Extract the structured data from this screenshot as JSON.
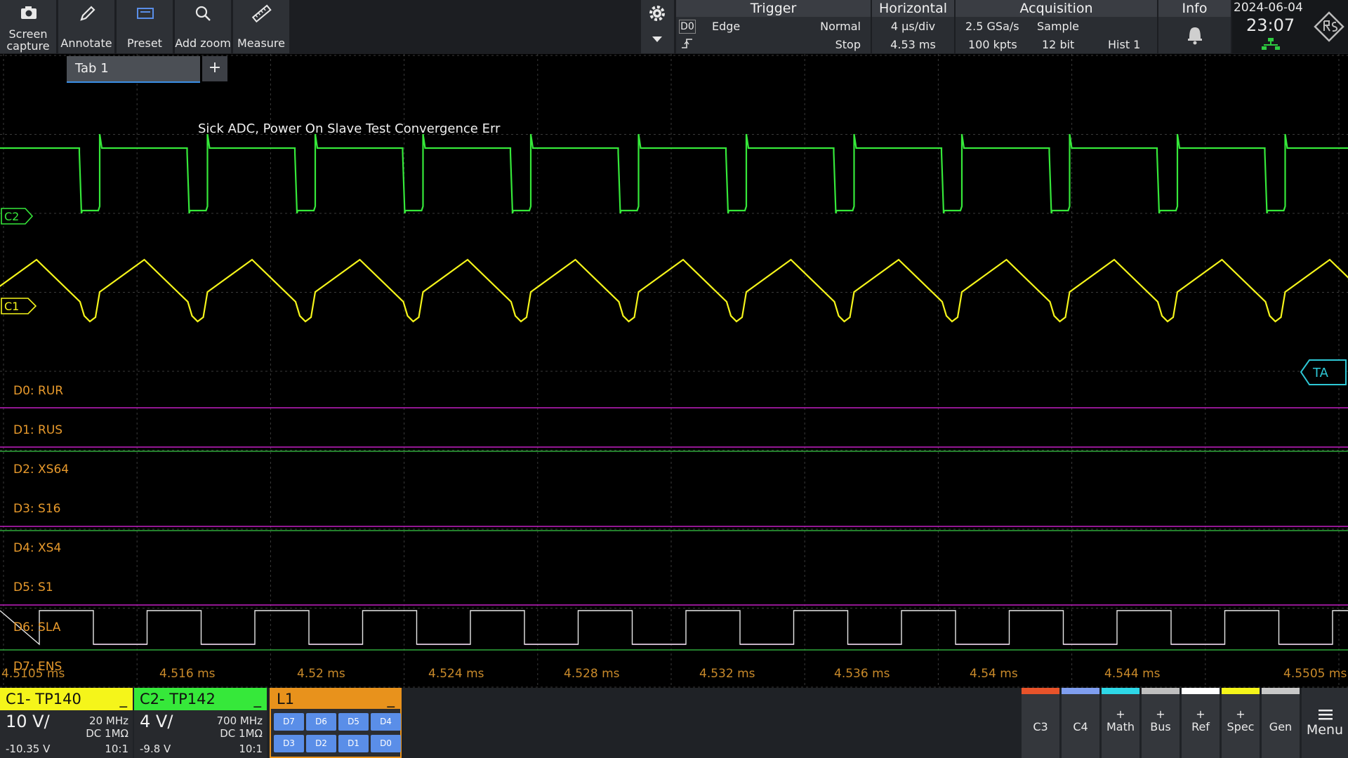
{
  "toolbar": {
    "screen_capture": "Screen\ncapture",
    "annotate": "Annotate",
    "preset": "Preset",
    "add_zoom": "Add zoom",
    "measure": "Measure"
  },
  "trigger": {
    "title": "Trigger",
    "source": "D0",
    "type": "Edge",
    "mode": "Normal",
    "state": "Stop"
  },
  "horizontal": {
    "title": "Horizontal",
    "scale": "4 µs/div",
    "position": "4.53 ms"
  },
  "acquisition": {
    "title": "Acquisition",
    "sample_rate": "2.5 GSa/s",
    "mode": "Sample",
    "record_length": "100 kpts",
    "resolution": "12 bit",
    "hist": "Hist 1"
  },
  "info": {
    "title": "Info"
  },
  "datetime": {
    "date": "2024-06-04",
    "time": "23:07"
  },
  "tabs": {
    "tab1": "Tab 1",
    "add": "+"
  },
  "annotation_text": "Sick ADC, Power On Slave Test Convergence Err",
  "channel_markers": {
    "c2": "C2",
    "c1": "C1",
    "trigger_arrow": "TA"
  },
  "digital_labels": [
    "D0: RUR",
    "D1: RUS",
    "D2: XS64",
    "D3: S16",
    "D4: XS4",
    "D5: S1",
    "D6: SLA",
    "D7: ENS"
  ],
  "time_axis": [
    "4.5105 ms",
    "4.516 ms",
    "4.52 ms",
    "4.524 ms",
    "4.528 ms",
    "4.532 ms",
    "4.536 ms",
    "4.54 ms",
    "4.544 ms",
    "4.5505 ms"
  ],
  "channels": {
    "c1": {
      "name": "C1- TP140",
      "scale": "10 V/",
      "bandwidth": "20 MHz",
      "coupling": "DC 1MΩ",
      "offset": "-10.35 V",
      "probe": "10:1",
      "color": "#f5f51a"
    },
    "c2": {
      "name": "C2- TP142",
      "scale": "4 V/",
      "bandwidth": "700 MHz",
      "coupling": "DC 1MΩ",
      "offset": "-9.8 V",
      "probe": "10:1",
      "color": "#36e83a"
    },
    "l1": {
      "name": "L1",
      "color": "#e8921c",
      "buttons": [
        "D7",
        "D6",
        "D5",
        "D4",
        "D3",
        "D2",
        "D1",
        "D0"
      ]
    }
  },
  "right_buttons": {
    "c3": "C3",
    "c4": "C4",
    "math_plus": "+",
    "math": "Math",
    "bus_plus": "+",
    "bus": "Bus",
    "ref_plus": "+",
    "ref": "Ref",
    "spec_plus": "+",
    "spec": "Spec",
    "gen": "Gen",
    "menu": "Menu"
  },
  "colors": {
    "c1_trace": "#f5f51a",
    "c2_trace": "#36e83a",
    "digital_low": "#c21fc2",
    "digital_high": "#2fa83a",
    "accent": "#3a8ee6"
  }
}
